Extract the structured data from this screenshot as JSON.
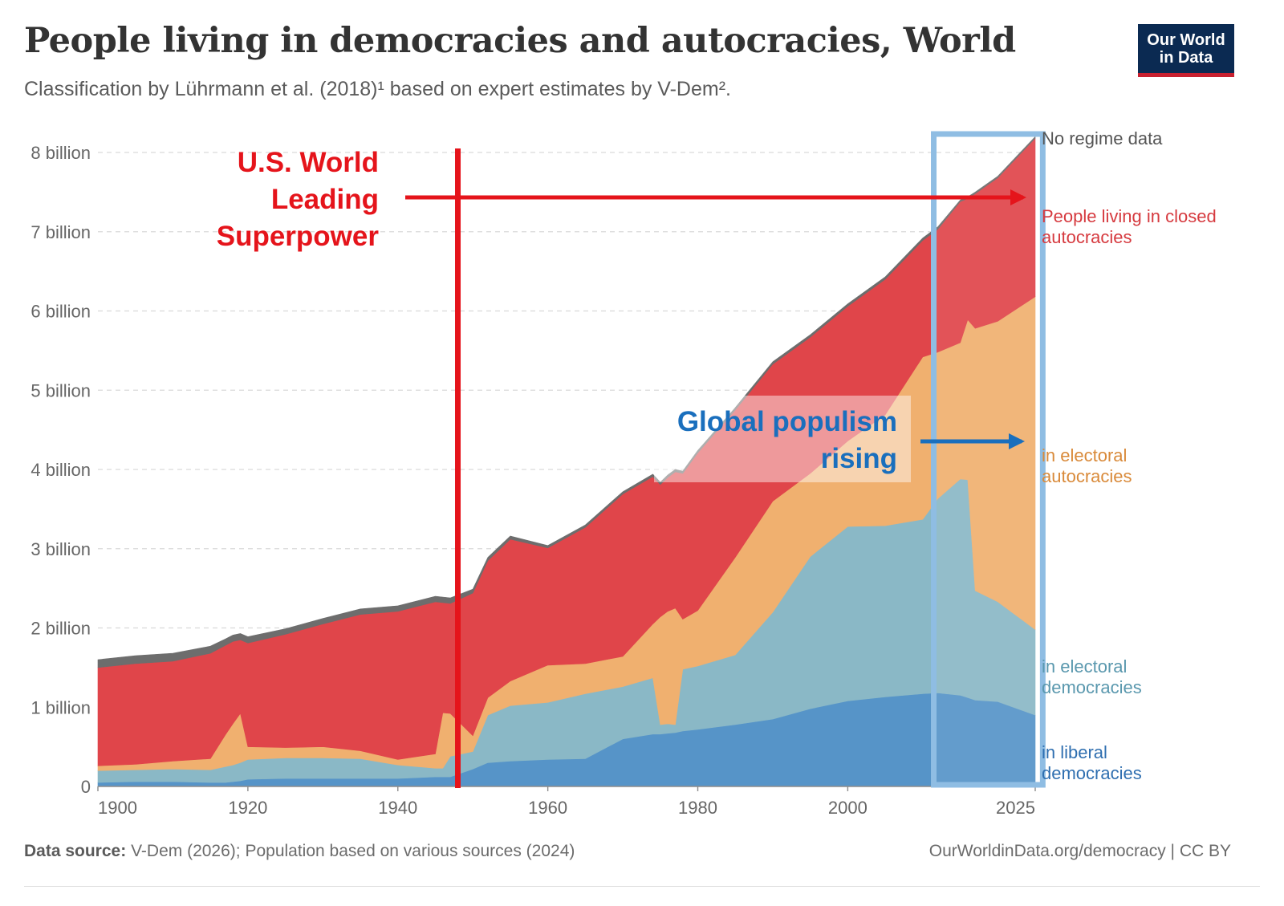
{
  "header": {
    "title": "People living in democracies and autocracies, World",
    "subtitle": "Classification by Lührmann et al. (2018)¹ based on expert estimates by V-Dem²."
  },
  "logo": {
    "line1": "Our World",
    "line2": "in Data"
  },
  "footer": {
    "source_label": "Data source:",
    "source_text": "V-Dem (2026); Population based on various sources (2024)",
    "credit": "OurWorldinData.org/democracy | CC BY"
  },
  "annotations": {
    "us": {
      "line1": "U.S. World",
      "line2": "Leading",
      "line3": "Superpower",
      "year": 1948,
      "color": "#e5141b"
    },
    "populism": {
      "line1": "Global populism",
      "line2": "rising",
      "color": "#1a6fbd"
    },
    "highlight_years": [
      2012,
      2026
    ]
  },
  "colors": {
    "no_regime": "#6d6d6d",
    "closed": "#e0454a",
    "electoral_autocracies": "#f0b06f",
    "electoral_democracies": "#8ab8c6",
    "liberal": "#5694c8"
  },
  "chart_data": {
    "type": "area",
    "stacked": true,
    "xlim": [
      1900,
      2025
    ],
    "ylim": [
      0,
      8000000000
    ],
    "x_ticks": [
      "1900",
      "1920",
      "1940",
      "1960",
      "1980",
      "2000",
      "2025"
    ],
    "y_ticks": [
      "0",
      "1 billion",
      "2 billion",
      "3 billion",
      "4 billion",
      "5 billion",
      "6 billion",
      "7 billion",
      "8 billion"
    ],
    "grid": "horizontal-dashed",
    "legend": "inline-right",
    "x": [
      1900,
      1905,
      1910,
      1915,
      1917,
      1918,
      1919,
      1920,
      1925,
      1930,
      1935,
      1940,
      1945,
      1946,
      1947,
      1950,
      1952,
      1955,
      1960,
      1965,
      1970,
      1974,
      1975,
      1976,
      1977,
      1978,
      1980,
      1985,
      1990,
      1995,
      2000,
      2005,
      2010,
      2012,
      2015,
      2016,
      2017,
      2020,
      2025
    ],
    "series": [
      {
        "name": "in liberal democracies",
        "values": [
          0.05,
          0.06,
          0.06,
          0.05,
          0.05,
          0.06,
          0.07,
          0.09,
          0.1,
          0.1,
          0.1,
          0.1,
          0.12,
          0.12,
          0.12,
          0.22,
          0.3,
          0.32,
          0.34,
          0.35,
          0.6,
          0.66,
          0.66,
          0.67,
          0.68,
          0.7,
          0.72,
          0.78,
          0.85,
          0.98,
          1.08,
          1.13,
          1.17,
          1.18,
          1.15,
          1.12,
          1.09,
          1.07,
          0.9
        ]
      },
      {
        "name": "in electoral democracies",
        "values": [
          0.15,
          0.15,
          0.16,
          0.16,
          0.2,
          0.21,
          0.23,
          0.25,
          0.26,
          0.26,
          0.25,
          0.17,
          0.11,
          0.11,
          0.26,
          0.22,
          0.6,
          0.7,
          0.72,
          0.82,
          0.66,
          0.71,
          0.12,
          0.12,
          0.1,
          0.78,
          0.8,
          0.88,
          1.35,
          1.92,
          2.2,
          2.16,
          2.2,
          2.45,
          2.73,
          2.75,
          1.38,
          1.26,
          1.08
        ]
      },
      {
        "name": "in electoral autocracies",
        "values": [
          0.06,
          0.07,
          0.1,
          0.14,
          0.4,
          0.52,
          0.62,
          0.16,
          0.13,
          0.14,
          0.1,
          0.07,
          0.18,
          0.7,
          0.54,
          0.2,
          0.22,
          0.31,
          0.47,
          0.38,
          0.38,
          0.68,
          1.36,
          1.42,
          1.47,
          0.63,
          0.7,
          1.23,
          1.4,
          1.05,
          1.08,
          1.4,
          2.05,
          1.85,
          1.72,
          2.02,
          3.31,
          3.54,
          4.2
        ]
      },
      {
        "name": "People living in closed autocracies",
        "values": [
          1.24,
          1.27,
          1.26,
          1.33,
          1.13,
          1.04,
          0.93,
          1.31,
          1.43,
          1.55,
          1.72,
          1.87,
          1.92,
          1.39,
          1.39,
          1.8,
          1.73,
          1.79,
          1.48,
          1.72,
          2.05,
          1.86,
          1.67,
          1.69,
          1.72,
          1.84,
          1.99,
          1.86,
          1.73,
          1.72,
          1.7,
          1.71,
          1.47,
          1.55,
          1.78,
          1.53,
          1.7,
          1.81,
          2.0
        ]
      },
      {
        "name": "No regime data",
        "values": [
          0.1,
          0.1,
          0.1,
          0.09,
          0.08,
          0.08,
          0.08,
          0.08,
          0.07,
          0.07,
          0.07,
          0.07,
          0.07,
          0.07,
          0.07,
          0.05,
          0.04,
          0.04,
          0.03,
          0.03,
          0.03,
          0.03,
          0.03,
          0.03,
          0.03,
          0.03,
          0.03,
          0.03,
          0.03,
          0.03,
          0.03,
          0.03,
          0.03,
          0.03,
          0.02,
          0.02,
          0.02,
          0.02,
          0.02
        ]
      }
    ],
    "values_unit": "billion people"
  }
}
